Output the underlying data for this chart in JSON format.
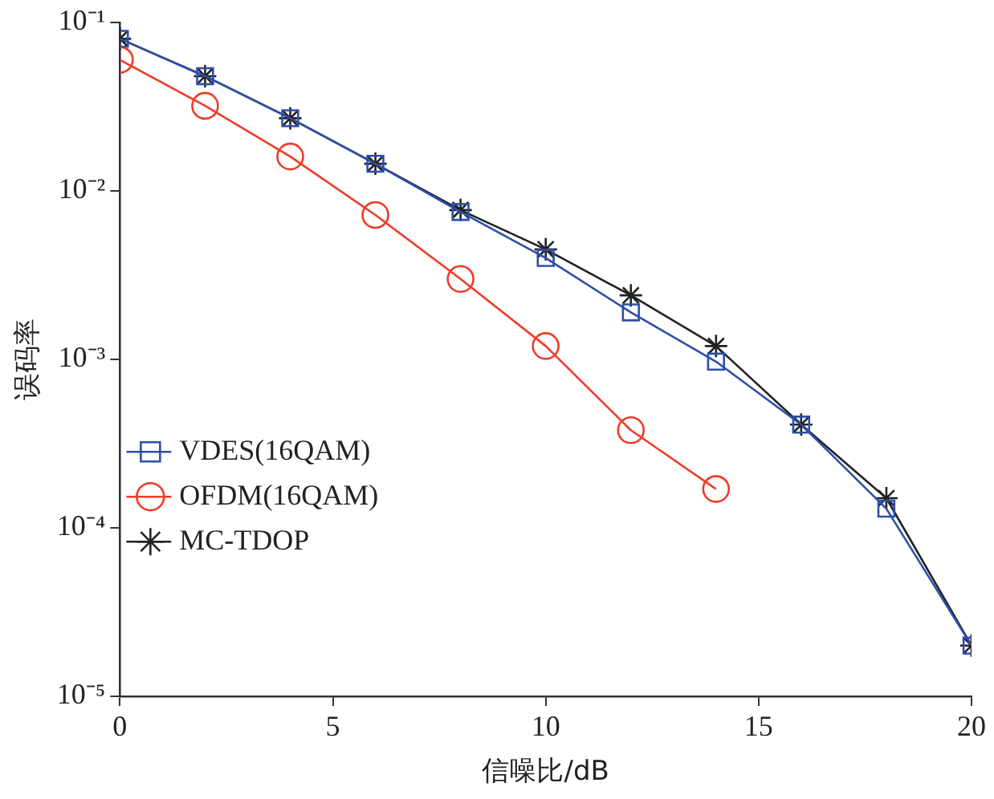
{
  "chart_data": {
    "type": "line",
    "xlabel": "信噪比/dB",
    "ylabel": "误码率",
    "log": "y",
    "grid": false,
    "legend": "left",
    "x": [
      0,
      2,
      4,
      6,
      8,
      10,
      12,
      14,
      16,
      18,
      20
    ],
    "xlim": [
      0,
      20
    ],
    "xticks": [
      0,
      5,
      10,
      15,
      20
    ],
    "ylim": [
      1e-05,
      0.1
    ],
    "yticks": [
      {
        "value": 1e-05,
        "label": "10⁻⁵"
      },
      {
        "value": 0.0001,
        "label": "10⁻⁴"
      },
      {
        "value": 0.001,
        "label": "10⁻³"
      },
      {
        "value": 0.01,
        "label": "10⁻²"
      },
      {
        "value": 0.1,
        "label": "10⁻¹"
      }
    ],
    "series": [
      {
        "name": "VDES(16QAM)",
        "color": "#2e4fa8",
        "marker": "square",
        "values": [
          0.08,
          0.048,
          0.027,
          0.0145,
          0.0075,
          0.004,
          0.0019,
          0.00097,
          0.00041,
          0.00013,
          2e-05
        ]
      },
      {
        "name": "OFDM(16QAM)",
        "color": "#f03c28",
        "marker": "circle",
        "values": [
          0.06,
          0.032,
          0.016,
          0.0072,
          0.003,
          0.0012,
          0.00038,
          0.00017,
          null,
          null,
          null
        ]
      },
      {
        "name": "MC-TDOP",
        "color": "#222222",
        "marker": "cross",
        "values": [
          0.08,
          0.048,
          0.027,
          0.0145,
          0.0077,
          0.0045,
          0.0024,
          0.0012,
          0.00041,
          0.00015,
          2e-05
        ]
      }
    ]
  }
}
